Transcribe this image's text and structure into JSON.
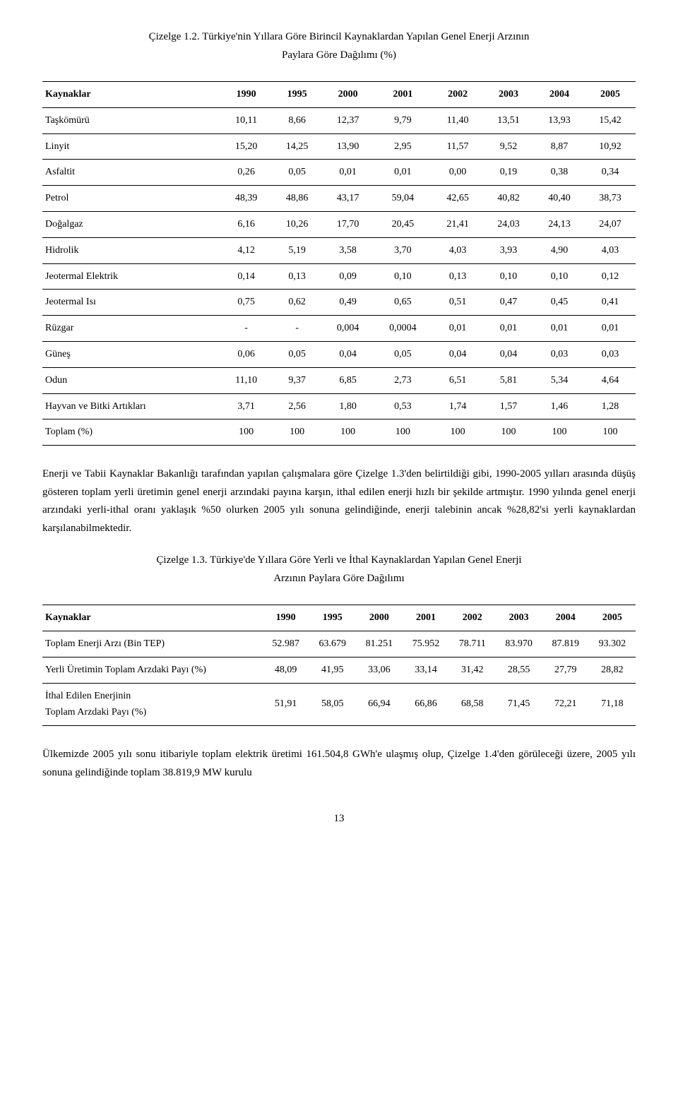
{
  "caption1": {
    "line1": "Çizelge 1.2. Türkiye'nin Yıllara Göre Birincil Kaynaklardan Yapılan Genel Enerji Arzının",
    "line2": "Paylara Göre Dağılımı (%)"
  },
  "table1": {
    "col0_header": "Kaynaklar",
    "years": [
      "1990",
      "1995",
      "2000",
      "2001",
      "2002",
      "2003",
      "2004",
      "2005"
    ],
    "rows": [
      {
        "label": "Taşkömürü",
        "vals": [
          "10,11",
          "8,66",
          "12,37",
          "9,79",
          "11,40",
          "13,51",
          "13,93",
          "15,42"
        ]
      },
      {
        "label": "Linyit",
        "vals": [
          "15,20",
          "14,25",
          "13,90",
          "2,95",
          "11,57",
          "9,52",
          "8,87",
          "10,92"
        ]
      },
      {
        "label": "Asfaltit",
        "vals": [
          "0,26",
          "0,05",
          "0,01",
          "0,01",
          "0,00",
          "0,19",
          "0,38",
          "0,34"
        ]
      },
      {
        "label": "Petrol",
        "vals": [
          "48,39",
          "48,86",
          "43,17",
          "59,04",
          "42,65",
          "40,82",
          "40,40",
          "38,73"
        ]
      },
      {
        "label": "Doğalgaz",
        "vals": [
          "6,16",
          "10,26",
          "17,70",
          "20,45",
          "21,41",
          "24,03",
          "24,13",
          "24,07"
        ]
      },
      {
        "label": "Hidrolik",
        "vals": [
          "4,12",
          "5,19",
          "3,58",
          "3,70",
          "4,03",
          "3,93",
          "4,90",
          "4,03"
        ]
      },
      {
        "label": "Jeotermal Elektrik",
        "vals": [
          "0,14",
          "0,13",
          "0,09",
          "0,10",
          "0,13",
          "0,10",
          "0,10",
          "0,12"
        ]
      },
      {
        "label": "Jeotermal Isı",
        "vals": [
          "0,75",
          "0,62",
          "0,49",
          "0,65",
          "0,51",
          "0,47",
          "0,45",
          "0,41"
        ]
      },
      {
        "label": "Rüzgar",
        "vals": [
          "-",
          "-",
          "0,004",
          "0,0004",
          "0,01",
          "0,01",
          "0,01",
          "0,01"
        ]
      },
      {
        "label": "Güneş",
        "vals": [
          "0,06",
          "0,05",
          "0,04",
          "0,05",
          "0,04",
          "0,04",
          "0,03",
          "0,03"
        ]
      },
      {
        "label": "Odun",
        "vals": [
          "11,10",
          "9,37",
          "6,85",
          "2,73",
          "6,51",
          "5,81",
          "5,34",
          "4,64"
        ]
      },
      {
        "label": "Hayvan ve Bitki Artıkları",
        "vals": [
          "3,71",
          "2,56",
          "1,80",
          "0,53",
          "1,74",
          "1,57",
          "1,46",
          "1,28"
        ]
      },
      {
        "label": "Toplam (%)",
        "vals": [
          "100",
          "100",
          "100",
          "100",
          "100",
          "100",
          "100",
          "100"
        ]
      }
    ]
  },
  "paragraph1": "Enerji ve Tabii Kaynaklar Bakanlığı tarafından yapılan çalışmalara göre Çizelge 1.3'den belirtildiği gibi, 1990-2005 yılları arasında düşüş gösteren toplam yerli üretimin genel enerji arzındaki payına karşın, ithal edilen enerji hızlı bir şekilde artmıştır. 1990 yılında genel enerji arzındaki yerli-ithal oranı yaklaşık %50 olurken 2005 yılı sonuna gelindiğinde, enerji talebinin ancak %28,82'si yerli kaynaklardan karşılanabilmektedir.",
  "caption2": {
    "line1": "Çizelge 1.3. Türkiye'de Yıllara Göre Yerli ve İthal Kaynaklardan Yapılan Genel Enerji",
    "line2": "Arzının Paylara Göre Dağılımı"
  },
  "table2": {
    "col0_header": "Kaynaklar",
    "years": [
      "1990",
      "1995",
      "2000",
      "2001",
      "2002",
      "2003",
      "2004",
      "2005"
    ],
    "rows": [
      {
        "label": "Toplam Enerji Arzı (Bin TEP)",
        "vals": [
          "52.987",
          "63.679",
          "81.251",
          "75.952",
          "78.711",
          "83.970",
          "87.819",
          "93.302"
        ]
      },
      {
        "label": "Yerli Üretimin Toplam Arzdaki Payı (%)",
        "vals": [
          "48,09",
          "41,95",
          "33,06",
          "33,14",
          "31,42",
          "28,55",
          "27,79",
          "28,82"
        ]
      },
      {
        "label": "İthal Edilen Enerjinin\nToplam Arzdaki Payı (%)",
        "vals": [
          "51,91",
          "58,05",
          "66,94",
          "66,86",
          "68,58",
          "71,45",
          "72,21",
          "71,18"
        ]
      }
    ]
  },
  "paragraph2": "Ülkemizde 2005 yılı sonu itibariyle toplam elektrik üretimi 161.504,8 GWh'e ulaşmış olup, Çizelge 1.4'den görüleceği üzere, 2005 yılı sonuna gelindiğinde toplam 38.819,9 MW kurulu",
  "pageNumber": "13"
}
